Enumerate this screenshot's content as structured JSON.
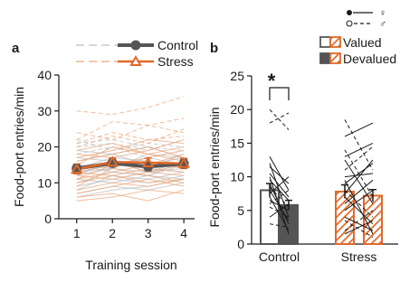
{
  "chart_data": [
    {
      "panel": "a",
      "type": "line",
      "xlabel": "Training session",
      "ylabel": "Food-port entries/min",
      "x": [
        1,
        2,
        3,
        4
      ],
      "xlim": [
        0.5,
        4.3
      ],
      "ylim": [
        0,
        40
      ],
      "yticks": [
        0,
        10,
        20,
        30,
        40
      ],
      "xticks": [
        1,
        2,
        3,
        4
      ],
      "grid": false,
      "legend_position": "top",
      "series": [
        {
          "name": "Control",
          "color": "#555555",
          "marker": "circle",
          "values": [
            14.0,
            15.5,
            14.5,
            15.3
          ],
          "sem": [
            1.2,
            1.0,
            1.1,
            1.2
          ]
        },
        {
          "name": "Stress",
          "color": "#e0692a",
          "marker": "triangle-open",
          "values": [
            13.8,
            15.8,
            15.6,
            15.4
          ],
          "sem": [
            1.3,
            1.1,
            1.3,
            1.4
          ]
        }
      ],
      "individual_lines": {
        "Control": [
          [
            12,
            14,
            13,
            16
          ],
          [
            18,
            20,
            17,
            19
          ],
          [
            9,
            11,
            10,
            12
          ],
          [
            15,
            14,
            18,
            17
          ],
          [
            7,
            9,
            8,
            10
          ],
          [
            20,
            21,
            19,
            22
          ],
          [
            13,
            15,
            14,
            13
          ],
          [
            11,
            10,
            12,
            11
          ],
          [
            16,
            18,
            15,
            17
          ],
          [
            22,
            19,
            21,
            20
          ],
          [
            10,
            13,
            12,
            15
          ],
          [
            14,
            17,
            16,
            14
          ],
          [
            17,
            16,
            14,
            18
          ],
          [
            8,
            12,
            11,
            13
          ],
          [
            19,
            18,
            20,
            17
          ],
          [
            12,
            16,
            13,
            14
          ],
          [
            15,
            13,
            12,
            16
          ],
          [
            21,
            22,
            20,
            19
          ],
          [
            6,
            8,
            9,
            11
          ],
          [
            13,
            14,
            17,
            15
          ]
        ],
        "Stress": [
          [
            11,
            15,
            17,
            19
          ],
          [
            24,
            22,
            26,
            28
          ],
          [
            8,
            10,
            9,
            11
          ],
          [
            16,
            18,
            20,
            17
          ],
          [
            6,
            7,
            5,
            8
          ],
          [
            19,
            21,
            18,
            20
          ],
          [
            13,
            15,
            16,
            14
          ],
          [
            10,
            12,
            14,
            13
          ],
          [
            30,
            29,
            31,
            34
          ],
          [
            15,
            20,
            18,
            16
          ],
          [
            9,
            14,
            12,
            10
          ],
          [
            17,
            19,
            22,
            21
          ],
          [
            12,
            11,
            13,
            15
          ],
          [
            21,
            24,
            22,
            23
          ],
          [
            7,
            9,
            11,
            9
          ],
          [
            14,
            16,
            13,
            12
          ],
          [
            18,
            17,
            19,
            22
          ],
          [
            5,
            6,
            8,
            7
          ],
          [
            20,
            23,
            21,
            25
          ],
          [
            11,
            13,
            15,
            18
          ],
          [
            22,
            27,
            26,
            24
          ],
          [
            13,
            12,
            10,
            11
          ]
        ]
      }
    },
    {
      "panel": "b",
      "type": "bar",
      "ylabel": "Food-port entries/min",
      "categories": [
        "Control",
        "Stress"
      ],
      "ylim": [
        0,
        25
      ],
      "yticks": [
        0,
        5,
        10,
        15,
        20,
        25
      ],
      "grid": false,
      "legend_position": "top-right",
      "series": [
        {
          "name": "Valued",
          "values": [
            8.0,
            7.8
          ],
          "sem": [
            1.0,
            1.0
          ]
        },
        {
          "name": "Devalued",
          "values": [
            5.8,
            7.2
          ],
          "sem": [
            0.7,
            0.9
          ]
        }
      ],
      "colors": {
        "Control": "#555555",
        "Stress": "#e0692a"
      },
      "annotations": [
        {
          "text": "*",
          "between": [
            "Control Valued",
            "Control Devalued"
          ]
        }
      ],
      "paired_points": {
        "Control": [
          [
            20,
            17
          ],
          [
            11.5,
            9
          ],
          [
            9,
            3
          ],
          [
            8.5,
            5.5
          ],
          [
            7,
            2
          ],
          [
            12,
            4
          ],
          [
            6,
            8
          ],
          [
            9.5,
            6.5
          ],
          [
            10,
            1.5
          ],
          [
            5.5,
            4
          ],
          [
            4,
            6
          ],
          [
            8,
            3.5
          ],
          [
            3,
            2.5
          ],
          [
            13,
            8
          ],
          [
            7.5,
            10
          ],
          [
            18,
            19.5
          ],
          [
            6.5,
            5
          ],
          [
            10.5,
            7
          ]
        ],
        "Stress": [
          [
            18.5,
            11
          ],
          [
            16,
            18
          ],
          [
            4,
            2
          ],
          [
            11,
            14.5
          ],
          [
            7,
            3
          ],
          [
            9,
            12
          ],
          [
            2,
            5
          ],
          [
            6,
            9.5
          ],
          [
            12.5,
            6
          ],
          [
            3.5,
            1
          ],
          [
            5,
            8
          ],
          [
            13,
            15
          ],
          [
            8,
            4
          ],
          [
            10,
            10.5
          ],
          [
            1.5,
            3.5
          ],
          [
            14,
            7
          ],
          [
            7.5,
            12.5
          ],
          [
            9.5,
            1.5
          ]
        ]
      }
    }
  ],
  "labels": {
    "panel_a": "a",
    "panel_b": "b",
    "female_symbol": "♀",
    "male_symbol": "♂"
  }
}
